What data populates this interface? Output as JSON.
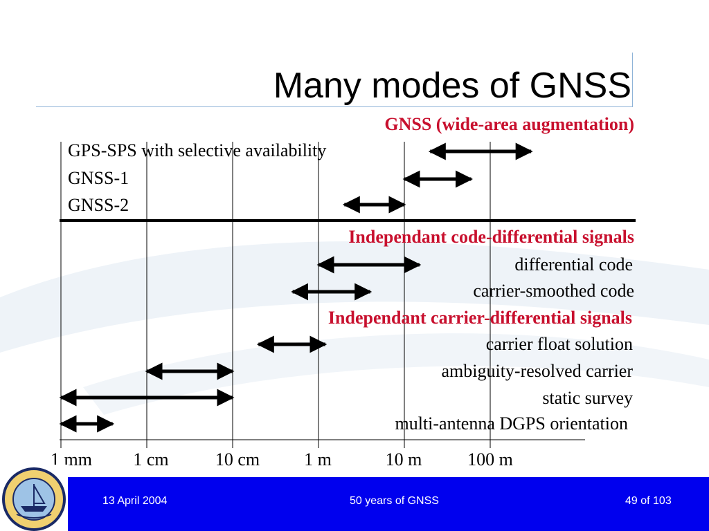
{
  "slide": {
    "title": "Many modes of GNSS"
  },
  "rows": {
    "r0": "GNSS (wide-area augmentation)",
    "r1": "GPS-SPS with selective availability",
    "r2": "GNSS-1",
    "r3": "GNSS-2",
    "r4": "Independant code-differential signals",
    "r5": "differential code",
    "r6": "carrier-smoothed code",
    "r7": "Independant carrier-differential signals",
    "r8": "carrier float solution",
    "r9": "ambiguity-resolved carrier",
    "r10": "static survey",
    "r11": "multi-antenna DGPS orientation"
  },
  "chart_data": {
    "type": "range",
    "scale": "log",
    "x_ticks": [
      "1 mm",
      "1 cm",
      "10 cm",
      "1 m",
      "10 m",
      "100 m"
    ],
    "x_tick_values_m": [
      0.001,
      0.01,
      0.1,
      1,
      10,
      100
    ],
    "ranges": [
      {
        "label": "GPS-SPS with selective availability",
        "from_m": 20,
        "to_m": 300
      },
      {
        "label": "GNSS-1",
        "from_m": 10,
        "to_m": 60
      },
      {
        "label": "GNSS-2",
        "from_m": 2,
        "to_m": 10
      },
      {
        "label": "differential code",
        "from_m": 1,
        "to_m": 15
      },
      {
        "label": "carrier-smoothed code",
        "from_m": 0.5,
        "to_m": 4
      },
      {
        "label": "carrier float solution",
        "from_m": 0.2,
        "to_m": 1.2
      },
      {
        "label": "ambiguity-resolved carrier",
        "from_m": 0.01,
        "to_m": 0.1
      },
      {
        "label": "static survey",
        "from_m": 0.001,
        "to_m": 0.1
      },
      {
        "label": "multi-antenna DGPS orientation",
        "from_m": 0.001,
        "to_m": 0.004
      }
    ]
  },
  "footer": {
    "date": "13 April 2004",
    "center": "50 years of GNSS",
    "page": "49 of 103"
  },
  "colors": {
    "heading_red": "#c8102e",
    "footer_blue": "#0000ee",
    "title_rule": "#8fb4d8"
  }
}
